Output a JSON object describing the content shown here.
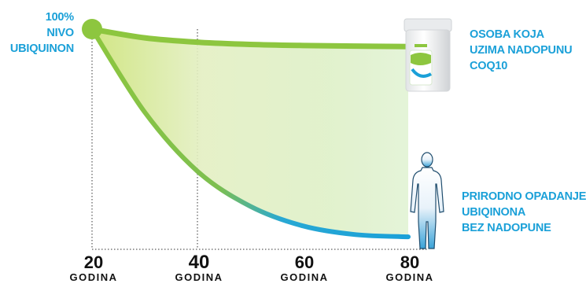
{
  "chart_data": {
    "type": "line",
    "x": [
      20,
      40,
      60,
      80
    ],
    "tick_labels": [
      {
        "value": "20",
        "unit": "GODINA"
      },
      {
        "value": "40",
        "unit": "GODINA"
      },
      {
        "value": "60",
        "unit": "GODINA"
      },
      {
        "value": "80",
        "unit": "GODINA"
      }
    ],
    "highlighted_tick": "40",
    "start_label": [
      "100%",
      "NIVO",
      "UBIQUINON"
    ],
    "series": [
      {
        "label_lines": [
          "OSOBA KOJA",
          "UZIMA NADOPUNU",
          "COQ10"
        ],
        "color": "#8dc63f",
        "x": [
          20,
          30,
          40,
          50,
          60,
          70,
          80
        ],
        "y": [
          100,
          96,
          94,
          93,
          92.5,
          92.2,
          92
        ]
      },
      {
        "label_lines": [
          "PRIRODNO OPADANJE",
          "UBIQINONA",
          "BEZ NADOPUNE"
        ],
        "color_start": "#8dc63f",
        "color_end": "#1aa0d8",
        "x": [
          20,
          30,
          40,
          50,
          60,
          70,
          80
        ],
        "y": [
          100,
          62,
          35,
          19,
          10,
          6,
          5
        ]
      }
    ],
    "ylim": [
      0,
      100
    ],
    "fill_between": true,
    "icons": [
      "supplement-jar-icon",
      "human-figure-icon"
    ]
  }
}
